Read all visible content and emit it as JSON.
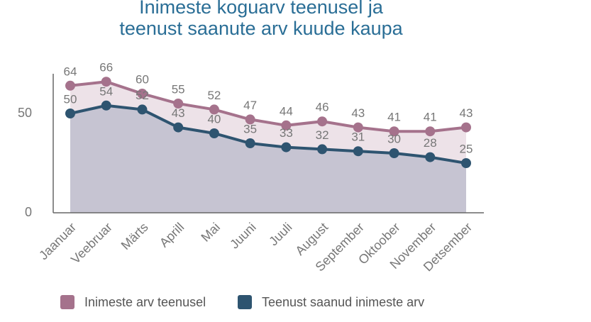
{
  "chart_data": {
    "type": "area",
    "title": [
      "Inimeste koguarv teenusel ja",
      "teenust saanute arv kuude kaupa"
    ],
    "categories": [
      "Jaanuar",
      "Veebruar",
      "Märts",
      "Aprill",
      "Mai",
      "Juuni",
      "Juuli",
      "August",
      "September",
      "Oktoober",
      "November",
      "Detsember"
    ],
    "series": [
      {
        "name": "Inimeste arv teenusel",
        "color": "#a5728c",
        "fill": "#ede2e8",
        "values": [
          64,
          66,
          60,
          55,
          52,
          47,
          44,
          46,
          43,
          41,
          41,
          43
        ]
      },
      {
        "name": "Teenust saanud inimeste arv",
        "color": "#2e5470",
        "fill": "#c6c4d2",
        "values": [
          50,
          54,
          52,
          43,
          40,
          35,
          33,
          32,
          31,
          30,
          28,
          25
        ]
      }
    ],
    "ylim": [
      0,
      70
    ],
    "yticks": [
      0,
      50
    ],
    "grid": false
  }
}
